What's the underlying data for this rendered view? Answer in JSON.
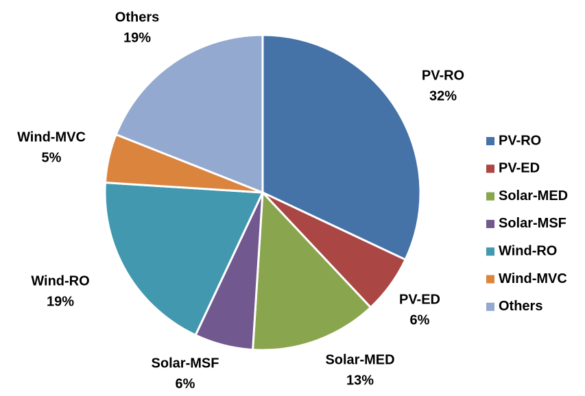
{
  "chart_data": {
    "type": "pie",
    "categories": [
      "PV-RO",
      "PV-ED",
      "Solar-MED",
      "Solar-MSF",
      "Wind-RO",
      "Wind-MVC",
      "Others"
    ],
    "values": [
      32,
      6,
      13,
      6,
      19,
      5,
      19
    ],
    "value_labels": [
      "32%",
      "6%",
      "13%",
      "6%",
      "19%",
      "5%",
      "19%"
    ],
    "colors": [
      "#4572a7",
      "#aa4643",
      "#89a54e",
      "#71588f",
      "#4198af",
      "#db843d",
      "#93a9cf"
    ],
    "legend": "right"
  }
}
